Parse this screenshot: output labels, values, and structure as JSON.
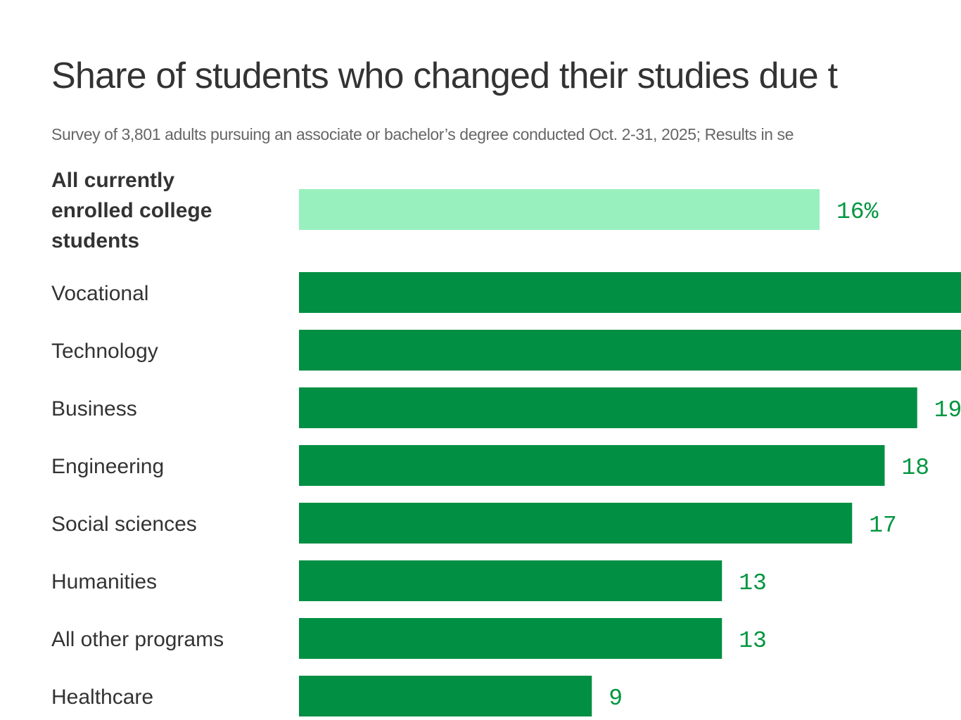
{
  "chart_data": {
    "type": "bar",
    "orientation": "horizontal",
    "title": "Share of students who changed their studies due t",
    "subtitle": "Survey of 3,801 adults pursuing an associate or bachelor’s degree conducted Oct. 2-31, 2025; Results in se",
    "xlabel": "",
    "ylabel": "",
    "xlim": [
      0,
      29.5
    ],
    "grid": false,
    "unit": "%",
    "categories": [
      [
        "All currently",
        "enrolled college",
        "students"
      ],
      [
        "Vocational"
      ],
      [
        "Technology"
      ],
      [
        "Business"
      ],
      [
        "Engineering"
      ],
      [
        "Social sciences"
      ],
      [
        "Humanities"
      ],
      [
        "All other programs"
      ],
      [
        "Healthcare"
      ]
    ],
    "values": [
      16,
      null,
      null,
      19,
      18,
      17,
      13,
      13,
      9
    ],
    "value_labels": [
      "16%",
      "",
      "",
      "19",
      "18",
      "17",
      "13",
      "13",
      "9"
    ],
    "highlight_index": 0,
    "colors": {
      "highlight_bar": "#99f0bf",
      "bar": "#008f43",
      "value_text": "#00953f",
      "label_text": "#333333",
      "subtitle_text": "#666666"
    }
  }
}
